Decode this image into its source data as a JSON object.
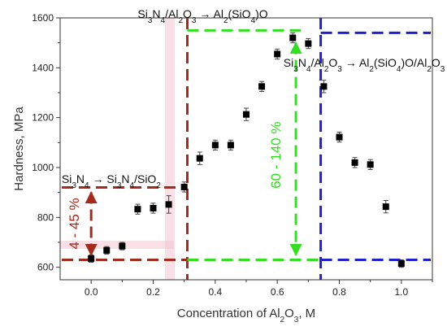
{
  "chart_data": {
    "type": "scatter",
    "xlabel": "Concentration of Al₂O₃, M",
    "ylabel": "Hardness, MPa",
    "xlim": [
      -0.1,
      1.1
    ],
    "ylim": [
      550,
      1600
    ],
    "xticks": [
      0.0,
      0.2,
      0.4,
      0.6,
      0.8,
      1.0
    ],
    "xtick_labels": [
      "0.0",
      "0.2",
      "0.4",
      "0.6",
      "0.8",
      "1.0"
    ],
    "yticks": [
      600,
      800,
      1000,
      1200,
      1400,
      1600
    ],
    "ytick_labels": [
      "600",
      "800",
      "1000",
      "1200",
      "1400",
      "1600"
    ],
    "grid": false,
    "series": [
      {
        "marker": "square",
        "color": "#000000",
        "points": [
          {
            "x": 0.0,
            "y": 635,
            "err": 15
          },
          {
            "x": 0.05,
            "y": 668,
            "err": 15
          },
          {
            "x": 0.1,
            "y": 685,
            "err": 15
          },
          {
            "x": 0.15,
            "y": 833,
            "err": 20
          },
          {
            "x": 0.2,
            "y": 837,
            "err": 20
          },
          {
            "x": 0.25,
            "y": 852,
            "err": 35
          },
          {
            "x": 0.3,
            "y": 922,
            "err": 20
          },
          {
            "x": 0.35,
            "y": 1037,
            "err": 25
          },
          {
            "x": 0.4,
            "y": 1090,
            "err": 20
          },
          {
            "x": 0.45,
            "y": 1090,
            "err": 20
          },
          {
            "x": 0.5,
            "y": 1213,
            "err": 25
          },
          {
            "x": 0.55,
            "y": 1325,
            "err": 20
          },
          {
            "x": 0.6,
            "y": 1455,
            "err": 20
          },
          {
            "x": 0.65,
            "y": 1520,
            "err": 20
          },
          {
            "x": 0.7,
            "y": 1497,
            "err": 20
          },
          {
            "x": 0.75,
            "y": 1325,
            "err": 25
          },
          {
            "x": 0.8,
            "y": 1122,
            "err": 20
          },
          {
            "x": 0.85,
            "y": 1020,
            "err": 20
          },
          {
            "x": 0.9,
            "y": 1012,
            "err": 20
          },
          {
            "x": 0.95,
            "y": 843,
            "err": 25
          },
          {
            "x": 1.0,
            "y": 615,
            "err": 15
          }
        ]
      }
    ],
    "regions": [
      {
        "color": "#a52a1e",
        "x_boundary": 0.31,
        "y_low": 630,
        "y_high": 920,
        "range_label": "4 - 45 %"
      },
      {
        "color": "#33dd22",
        "x_boundary_left": 0.31,
        "x_boundary_right": 0.66,
        "y_low": 630,
        "y_high": 1550,
        "range_label": "60 - 140 %"
      },
      {
        "color": "#1f22cc",
        "x_boundary": 0.74,
        "y_low": 630,
        "y_high": 1540
      }
    ],
    "annotations": [
      {
        "lhs": "Si₃N₄",
        "rhs": "Si₃N₄/SiO₂",
        "x": -0.095,
        "y": 938
      },
      {
        "lhs": "Si₃N₄/Al₂O₃",
        "rhs": "Al₂(SiO₄)O",
        "x": 0.15,
        "y": 1600
      },
      {
        "lhs": "Si₃N₄/Al₂O₃",
        "rhs": "Al₂(SiO₄)O/Al₂O₃",
        "x": 0.62,
        "y": 1405
      }
    ],
    "arrow_symbol": "→"
  }
}
